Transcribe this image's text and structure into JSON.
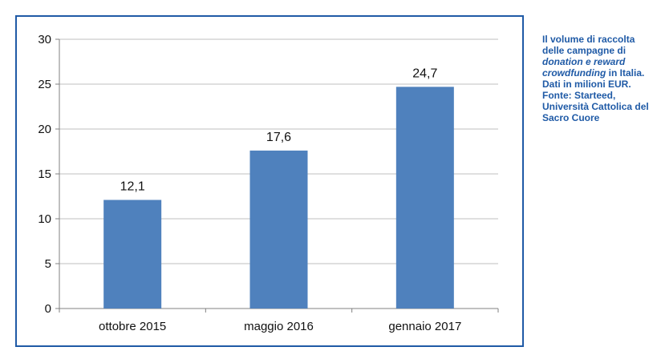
{
  "chart_data": {
    "type": "bar",
    "categories": [
      "ottobre 2015",
      "maggio 2016",
      "gennaio 2017"
    ],
    "values": [
      12.1,
      17.6,
      24.7
    ],
    "value_labels": [
      "12,1",
      "17,6",
      "24,7"
    ],
    "title": "",
    "xlabel": "",
    "ylabel": "",
    "ylim": [
      0,
      30
    ],
    "yticks": [
      0,
      5,
      10,
      15,
      20,
      25,
      30
    ],
    "grid": true,
    "legend": "none",
    "bar_color": "#4f81bd",
    "grid_color": "#bfbfbf"
  },
  "caption": {
    "line1": "Il volume di raccolta delle campagne di",
    "italic1": "donation",
    "connector": " e ",
    "italic2": "reward crowdfunding",
    "line2_end": " in Italia.",
    "line3": "Dati in milioni EUR.",
    "line4": "Fonte: Starteed, Università Cattolica del Sacro Cuore",
    "color": "#1f5aa6"
  }
}
